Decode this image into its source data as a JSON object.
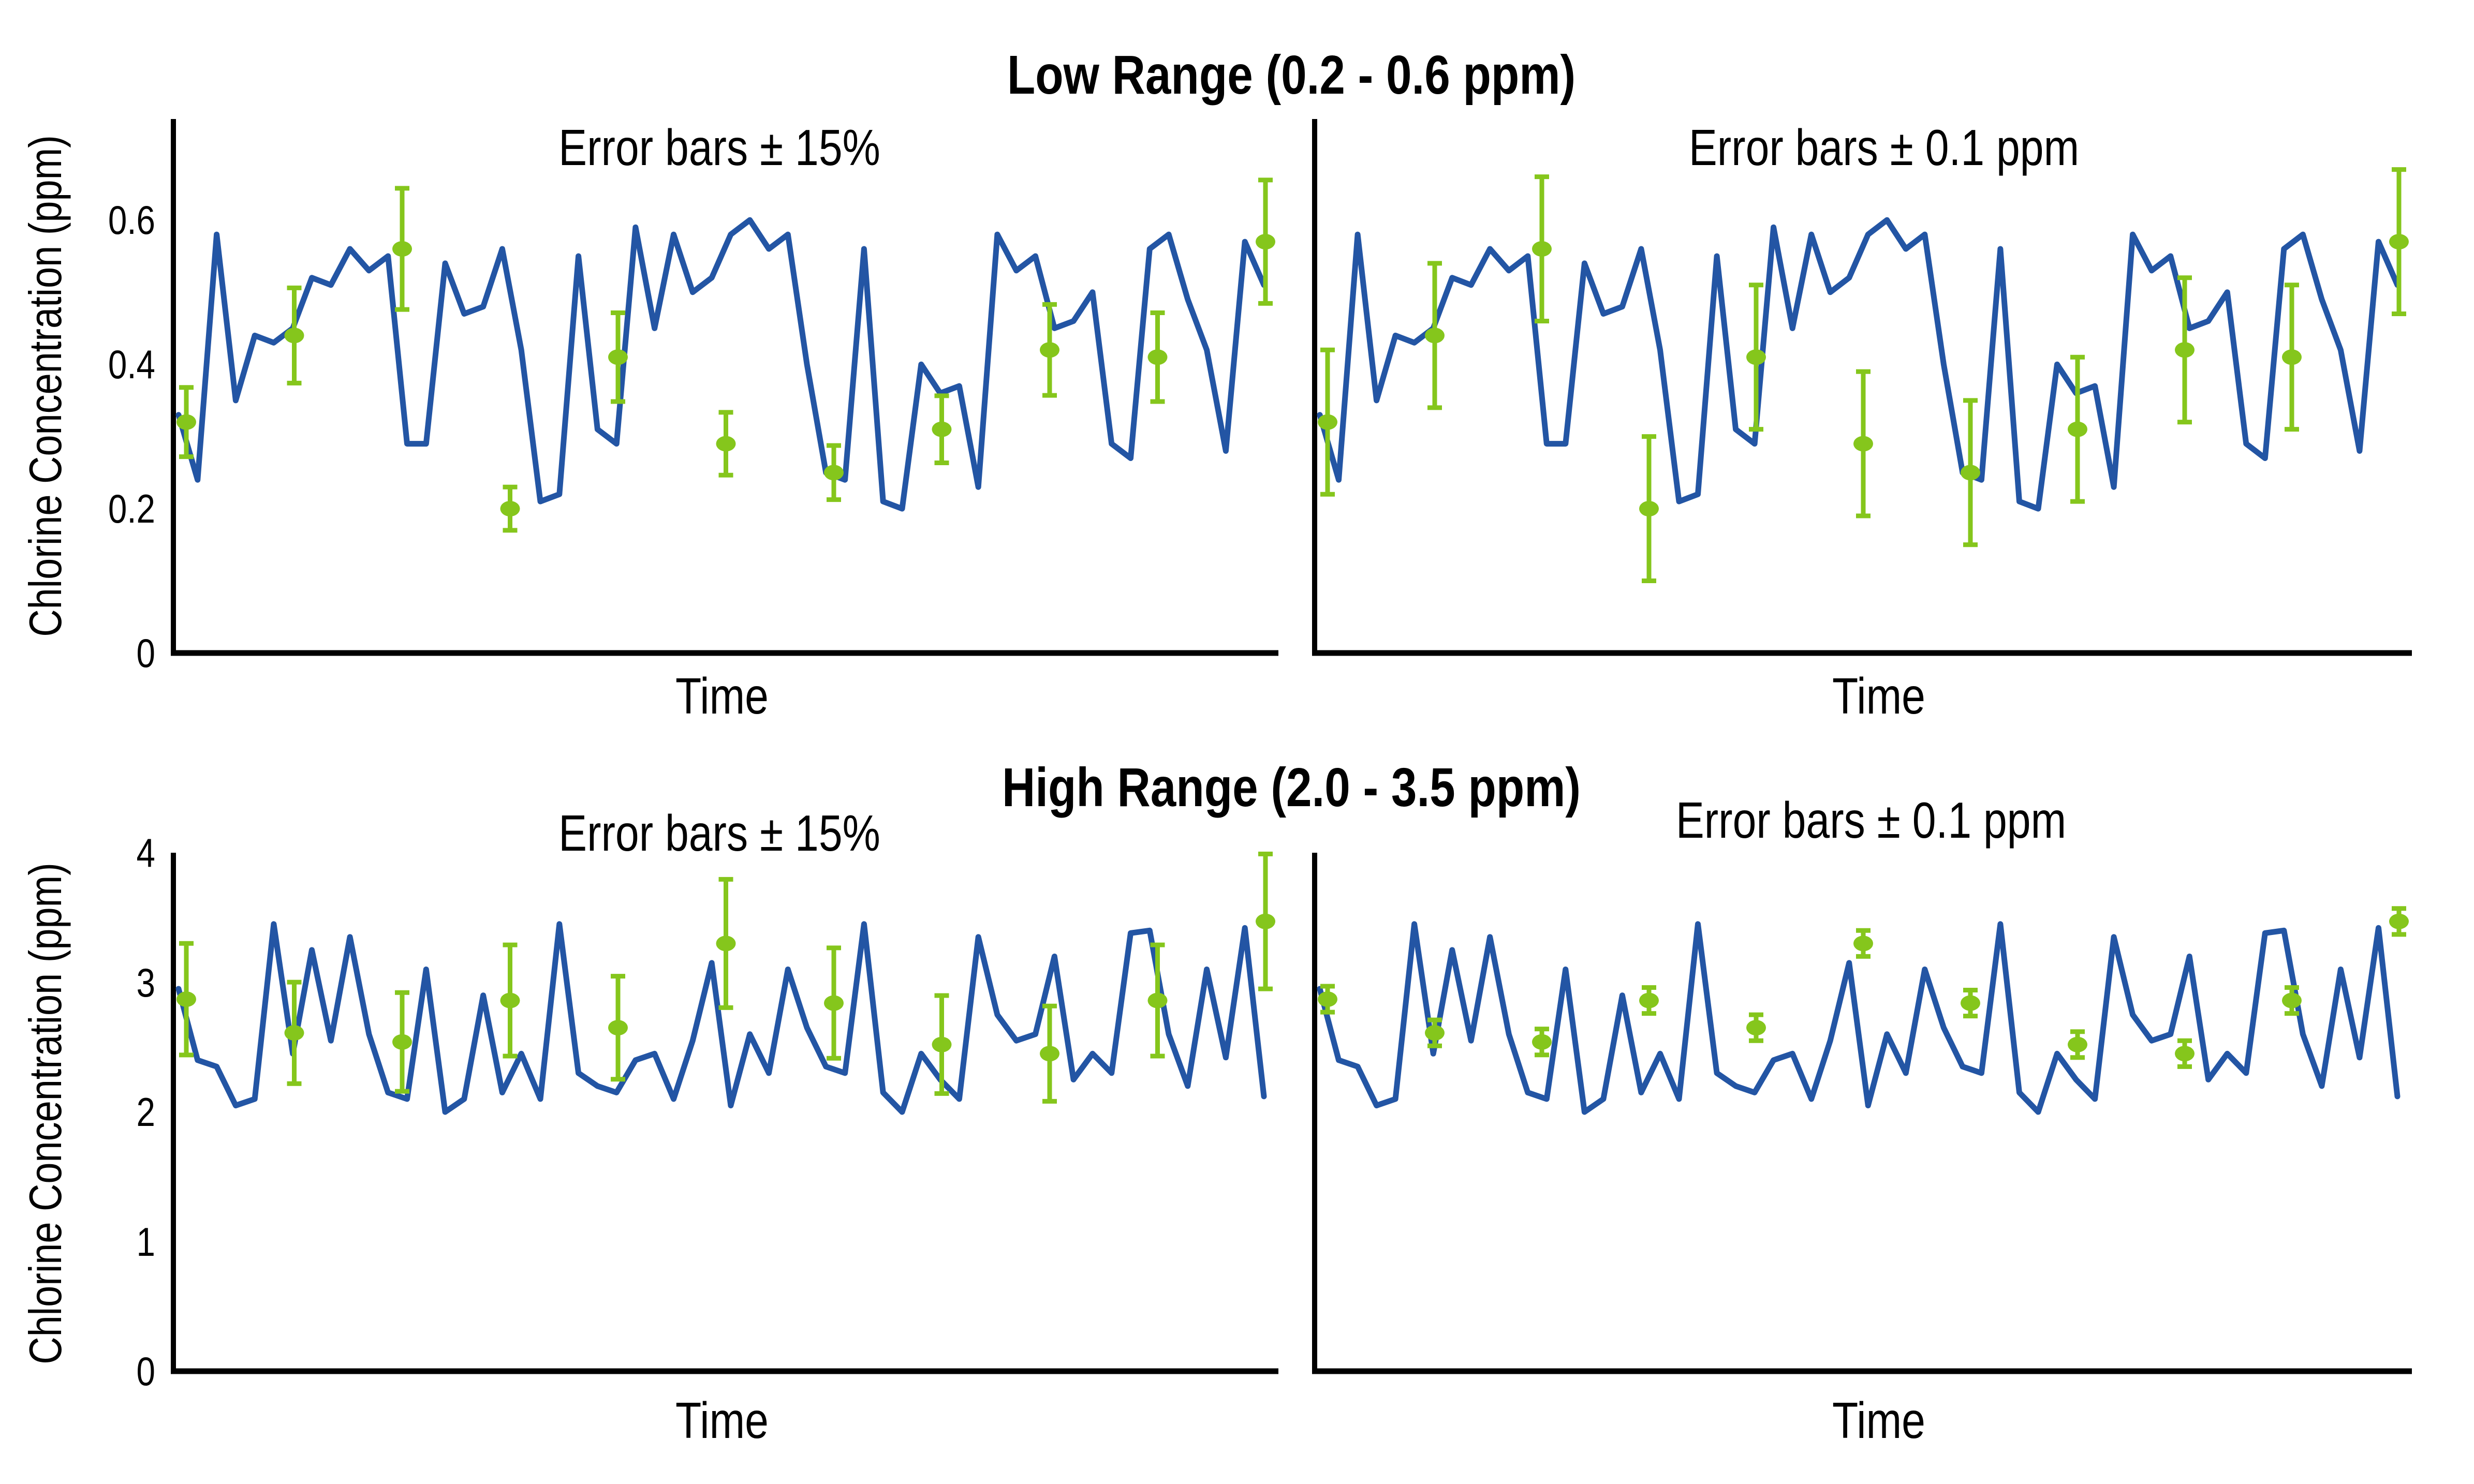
{
  "figure": {
    "row1_title": "Low Range (0.2 - 0.6 ppm)",
    "row2_title": "High Range (2.0 - 3.5 ppm)",
    "ylabel": "Chlorine Concentration (ppm)",
    "xlabel": "Time",
    "caption_pct": "Error bars ± 15%",
    "caption_abs": "Error bars ± 0.1 ppm"
  },
  "colors": {
    "background": "#FFFFFF",
    "line_blue": "#2355A4",
    "marker_green": "#85C61C",
    "axis_black": "#000000",
    "text_black": "#000000"
  },
  "chart_data": {
    "type": "line",
    "rows": [
      {
        "title": "Low Range (0.2 - 0.6 ppm)",
        "ylabel": "Chlorine Concentration (ppm)",
        "xlabel": "Time",
        "ylim": [
          0,
          0.74
        ],
        "yticks": [
          0,
          0.2,
          0.4,
          0.6
        ],
        "line_values": [
          0.33,
          0.24,
          0.58,
          0.35,
          0.44,
          0.43,
          0.45,
          0.52,
          0.51,
          0.56,
          0.53,
          0.55,
          0.29,
          0.29,
          0.54,
          0.47,
          0.48,
          0.56,
          0.42,
          0.21,
          0.22,
          0.55,
          0.31,
          0.29,
          0.59,
          0.45,
          0.58,
          0.5,
          0.52,
          0.58,
          0.6,
          0.56,
          0.58,
          0.4,
          0.25,
          0.24,
          0.56,
          0.21,
          0.2,
          0.4,
          0.36,
          0.37,
          0.23,
          0.58,
          0.53,
          0.55,
          0.45,
          0.46,
          0.5,
          0.29,
          0.27,
          0.56,
          0.58,
          0.49,
          0.42,
          0.28,
          0.57,
          0.51
        ],
        "point_values": [
          0.32,
          0.44,
          0.56,
          0.2,
          0.41,
          0.29,
          0.25,
          0.31,
          0.42,
          0.41,
          0.57
        ],
        "panels": [
          {
            "subtitle": "Error bars ± 15%",
            "error_type": "percent",
            "error_value": 15,
            "show_ytick_labels": true
          },
          {
            "subtitle": "Error bars ± 0.1 ppm",
            "error_type": "absolute",
            "error_value": 0.1,
            "show_ytick_labels": false
          }
        ]
      },
      {
        "title": "High Range (2.0 - 3.5 ppm)",
        "ylabel": "Chlorine Concentration (ppm)",
        "xlabel": "Time",
        "ylim": [
          0,
          4
        ],
        "yticks": [
          0,
          1,
          2,
          3,
          4
        ],
        "line_values": [
          2.95,
          2.4,
          2.35,
          2.05,
          2.1,
          3.45,
          2.45,
          3.25,
          2.55,
          3.35,
          2.6,
          2.15,
          2.1,
          3.1,
          2.0,
          2.1,
          2.9,
          2.15,
          2.45,
          2.1,
          3.45,
          2.3,
          2.2,
          2.15,
          2.4,
          2.45,
          2.1,
          2.55,
          3.15,
          2.05,
          2.6,
          2.3,
          3.1,
          2.65,
          2.35,
          2.3,
          3.45,
          2.15,
          2.0,
          2.45,
          2.25,
          2.1,
          3.35,
          2.75,
          2.55,
          2.6,
          3.2,
          2.25,
          2.45,
          2.3,
          3.38,
          3.4,
          2.6,
          2.2,
          3.1,
          2.42,
          3.42,
          2.12
        ],
        "point_values": [
          2.87,
          2.61,
          2.54,
          2.86,
          2.65,
          3.3,
          2.84,
          2.52,
          2.45,
          2.86,
          3.47
        ],
        "panels": [
          {
            "subtitle": "Error bars ± 15%",
            "error_type": "percent",
            "error_value": 15,
            "show_ytick_labels": true
          },
          {
            "subtitle": "Error bars ± 0.1 ppm",
            "error_type": "absolute",
            "error_value": 0.1,
            "show_ytick_labels": false
          }
        ]
      }
    ]
  }
}
